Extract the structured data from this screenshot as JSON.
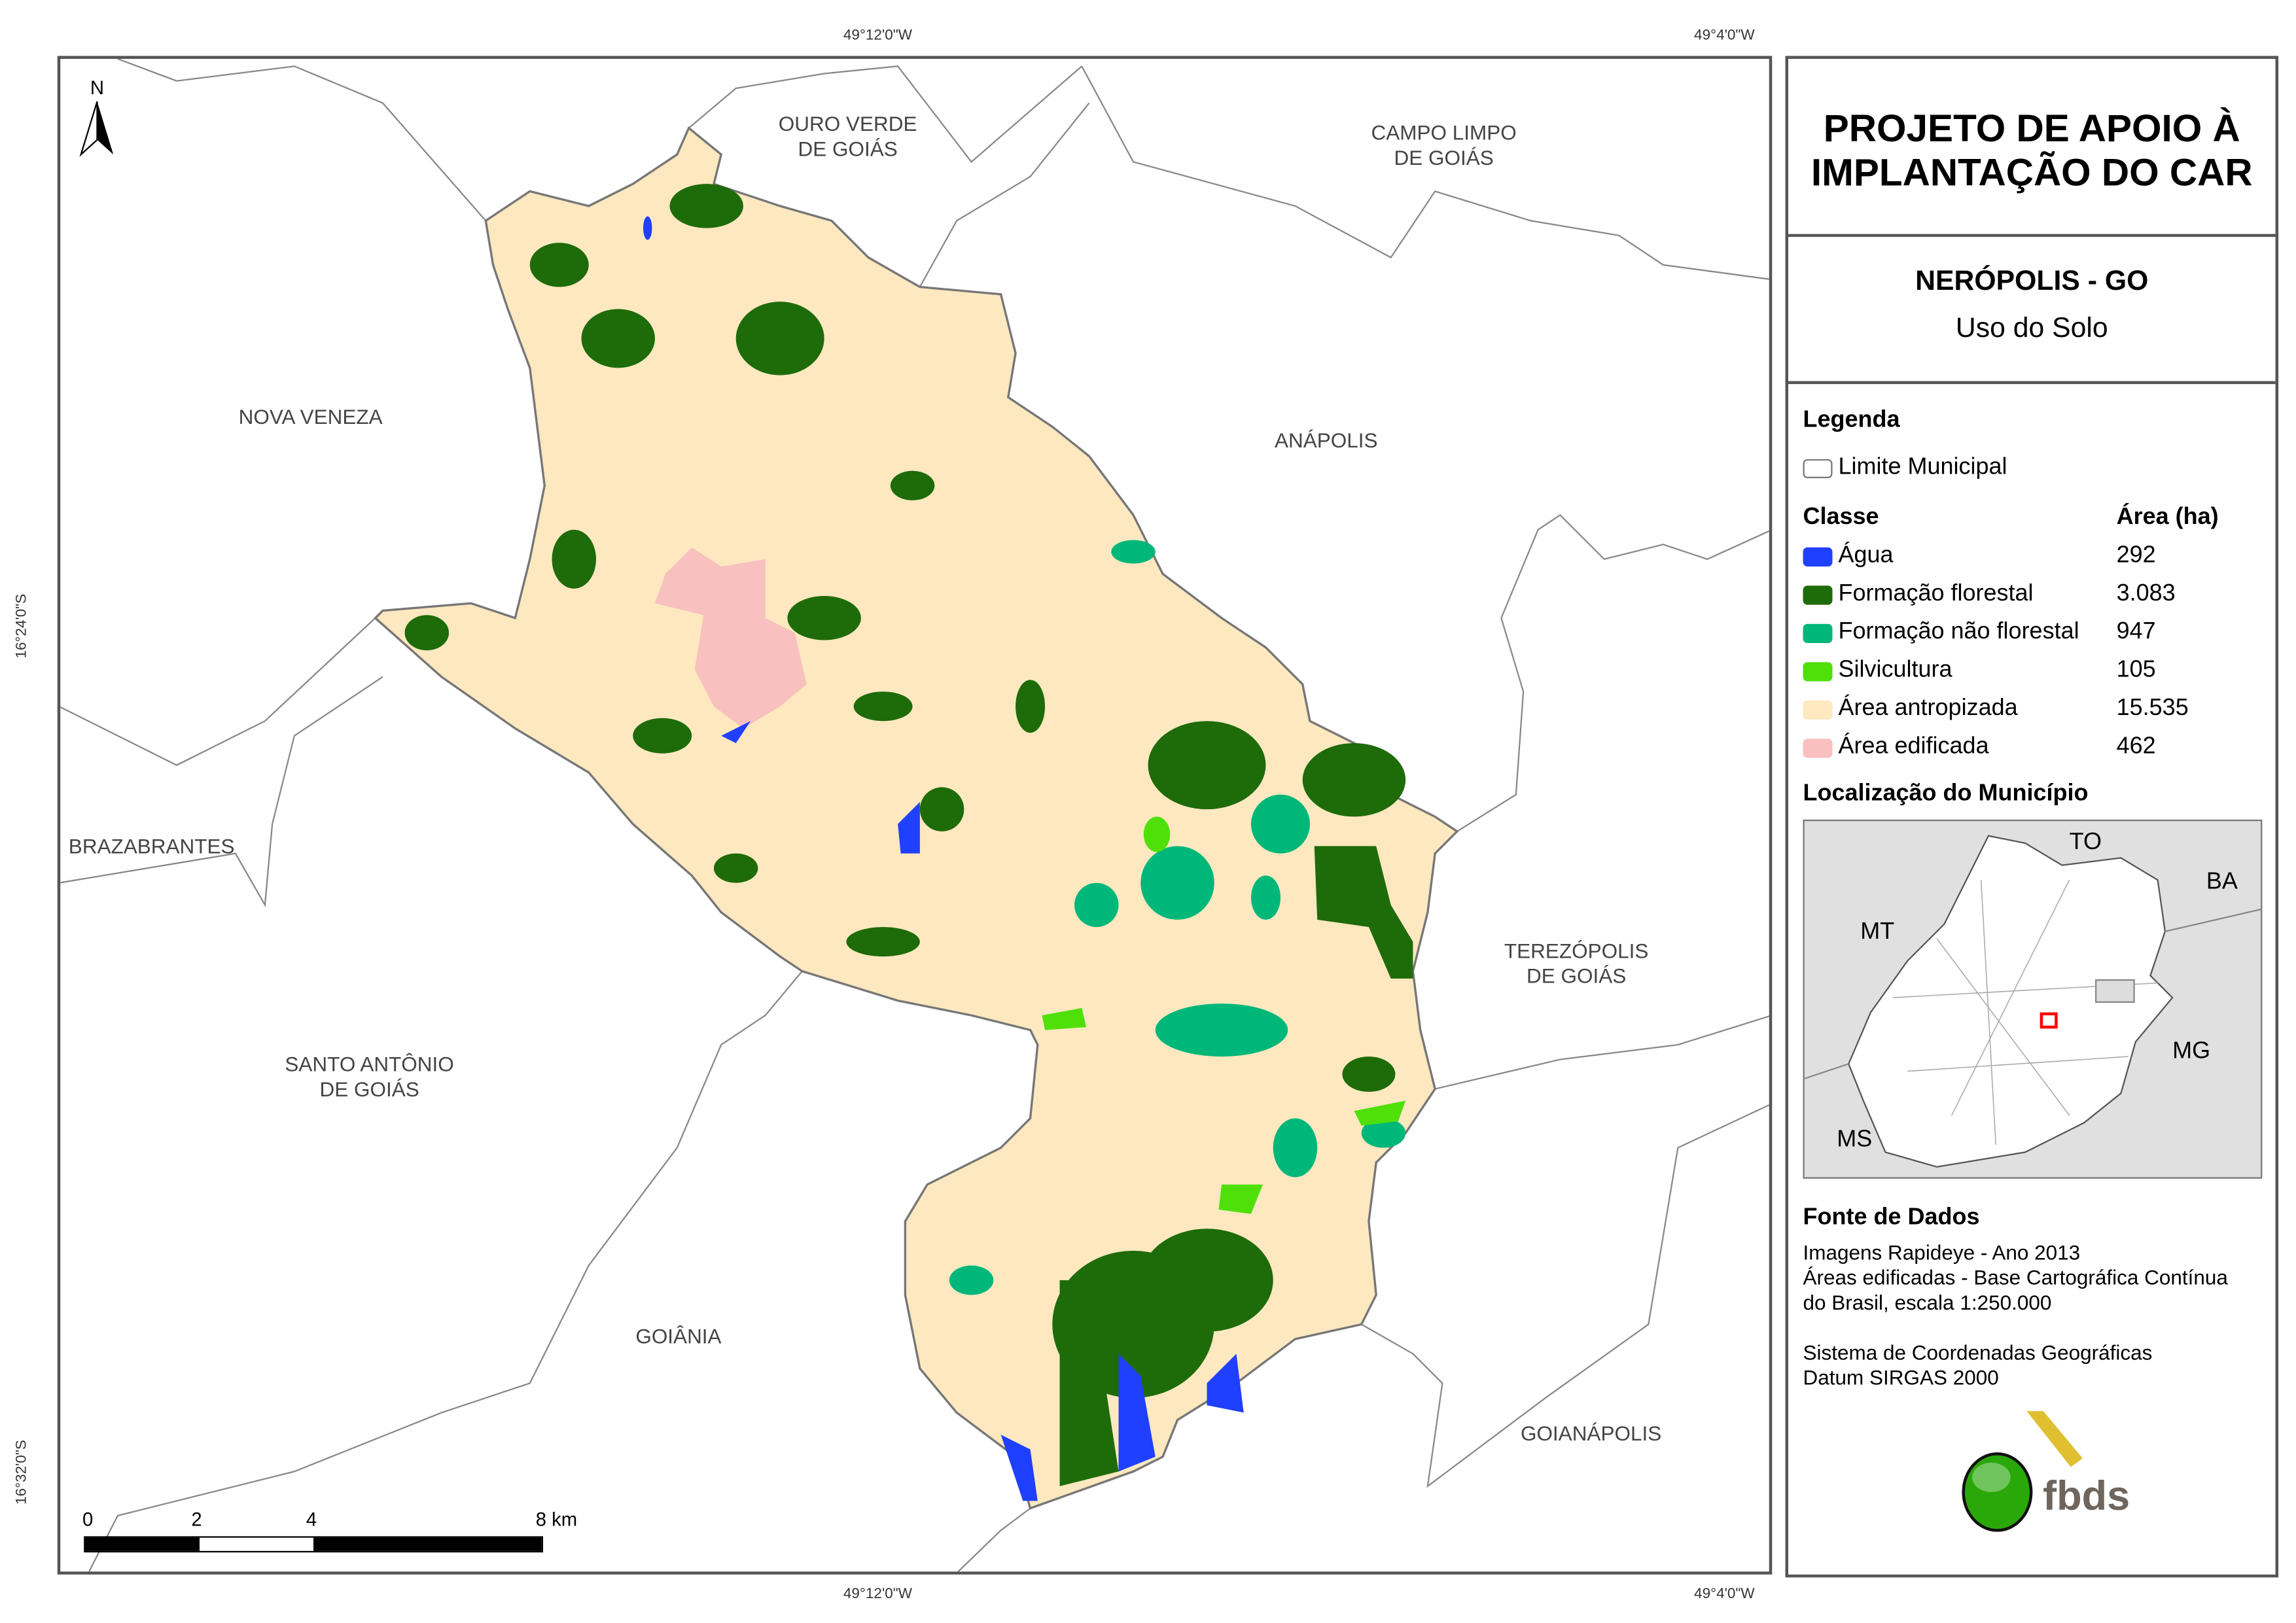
{
  "title": "PROJETO DE APOIO À IMPLANTAÇÃO DO CAR",
  "municipality": "NERÓPOLIS - GO",
  "subtitle": "Uso do Solo",
  "coords": {
    "top_left": "49°12'0\"W",
    "top_right": "49°4'0\"W",
    "bottom_left": "49°12'0\"W",
    "bottom_right": "49°4'0\"W",
    "left_top": "16°24'0\"S",
    "left_bottom": "16°32'0\"S"
  },
  "north": "N",
  "neighbors": {
    "ouro_verde": "OURO VERDE\nDE GOIÁS",
    "campo_limpo": "CAMPO LIMPO\nDE GOIÁS",
    "nova_veneza": "NOVA VENEZA",
    "anapolis": "ANÁPOLIS",
    "brazabrantes": "BRAZABRANTES",
    "terezopolis": "TEREZÓPOLIS\nDE GOIÁS",
    "santo_antonio": "SANTO ANTÔNIO\nDE GOIÁS",
    "goiania": "GOIÂNIA",
    "goianapolis": "GOIANÁPOLIS"
  },
  "scale": {
    "ticks": [
      "0",
      "2",
      "4",
      "8 km"
    ]
  },
  "legend": {
    "heading": "Legenda",
    "limit": "Limite Municipal",
    "class_header": "Classe",
    "area_header": "Área (ha)",
    "classes": [
      {
        "label": "Água",
        "area": "292",
        "color": "#2040ff"
      },
      {
        "label": "Formação florestal",
        "area": "3.083",
        "color": "#1e6b0a"
      },
      {
        "label": "Formação não florestal",
        "area": "947",
        "color": "#00b77a"
      },
      {
        "label": "Silvicultura",
        "area": "105",
        "color": "#4fe00a"
      },
      {
        "label": "Área antropizada",
        "area": "15.535",
        "color": "#fde8c0"
      },
      {
        "label": "Área edificada",
        "area": "462",
        "color": "#f9c0c0"
      }
    ]
  },
  "location": {
    "heading": "Localização do Município",
    "states": {
      "to": "TO",
      "ba": "BA",
      "mt": "MT",
      "mg": "MG",
      "ms": "MS"
    }
  },
  "sources": {
    "heading": "Fonte de Dados",
    "lines": [
      "Imagens Rapideye - Ano 2013",
      "Áreas edificadas - Base Cartográfica Contínua",
      "do Brasil, escala 1:250.000",
      "",
      "Sistema de Coordenadas Geográficas",
      "Datum SIRGAS 2000"
    ]
  },
  "logo": "fbds"
}
